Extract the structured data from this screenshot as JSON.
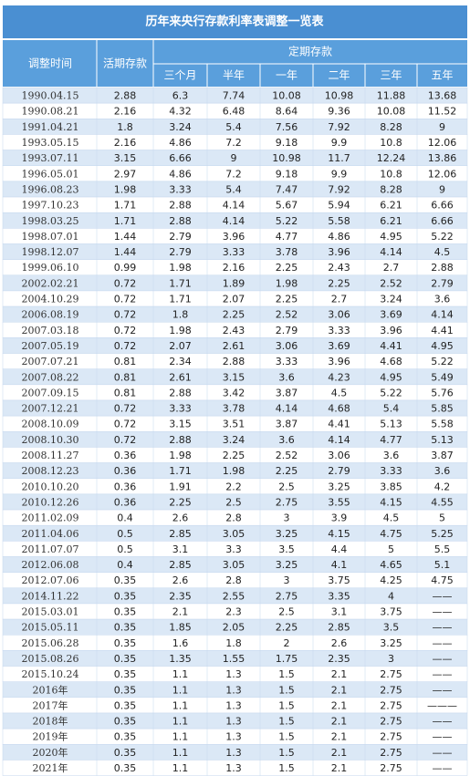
{
  "title": "历年来央行存款利率表调整一览表",
  "header": {
    "date": "调整时间",
    "demand": "活期存款",
    "fixed": "定期存款",
    "terms": [
      "三个月",
      "半年",
      "一年",
      "二年",
      "三年",
      "五年"
    ]
  },
  "rows": [
    [
      "1990.04.15",
      "2.88",
      "6.3",
      "7.74",
      "10.08",
      "10.98",
      "11.88",
      "13.68"
    ],
    [
      "1990.08.21",
      "2.16",
      "4.32",
      "6.48",
      "8.64",
      "9.36",
      "10.08",
      "11.52"
    ],
    [
      "1991.04.21",
      "1.8",
      "3.24",
      "5.4",
      "7.56",
      "7.92",
      "8.28",
      "9"
    ],
    [
      "1993.05.15",
      "2.16",
      "4.86",
      "7.2",
      "9.18",
      "9.9",
      "10.8",
      "12.06"
    ],
    [
      "1993.07.11",
      "3.15",
      "6.66",
      "9",
      "10.98",
      "11.7",
      "12.24",
      "13.86"
    ],
    [
      "1996.05.01",
      "2.97",
      "4.86",
      "7.2",
      "9.18",
      "9.9",
      "10.8",
      "12.06"
    ],
    [
      "1996.08.23",
      "1.98",
      "3.33",
      "5.4",
      "7.47",
      "7.92",
      "8.28",
      "9"
    ],
    [
      "1997.10.23",
      "1.71",
      "2.88",
      "4.14",
      "5.67",
      "5.94",
      "6.21",
      "6.66"
    ],
    [
      "1998.03.25",
      "1.71",
      "2.88",
      "4.14",
      "5.22",
      "5.58",
      "6.21",
      "6.66"
    ],
    [
      "1998.07.01",
      "1.44",
      "2.79",
      "3.96",
      "4.77",
      "4.86",
      "4.95",
      "5.22"
    ],
    [
      "1998.12.07",
      "1.44",
      "2.79",
      "3.33",
      "3.78",
      "3.96",
      "4.14",
      "4.5"
    ],
    [
      "1999.06.10",
      "0.99",
      "1.98",
      "2.16",
      "2.25",
      "2.43",
      "2.7",
      "2.88"
    ],
    [
      "2002.02.21",
      "0.72",
      "1.71",
      "1.89",
      "1.98",
      "2.25",
      "2.52",
      "2.79"
    ],
    [
      "2004.10.29",
      "0.72",
      "1.71",
      "2.07",
      "2.25",
      "2.7",
      "3.24",
      "3.6"
    ],
    [
      "2006.08.19",
      "0.72",
      "1.8",
      "2.25",
      "2.52",
      "3.06",
      "3.69",
      "4.14"
    ],
    [
      "2007.03.18",
      "0.72",
      "1.98",
      "2.43",
      "2.79",
      "3.33",
      "3.96",
      "4.41"
    ],
    [
      "2007.05.19",
      "0.72",
      "2.07",
      "2.61",
      "3.06",
      "3.69",
      "4.41",
      "4.95"
    ],
    [
      "2007.07.21",
      "0.81",
      "2.34",
      "2.88",
      "3.33",
      "3.96",
      "4.68",
      "5.22"
    ],
    [
      "2007.08.22",
      "0.81",
      "2.61",
      "3.15",
      "3.6",
      "4.23",
      "4.95",
      "5.49"
    ],
    [
      "2007.09.15",
      "0.81",
      "2.88",
      "3.42",
      "3.87",
      "4.5",
      "5.22",
      "5.76"
    ],
    [
      "2007.12.21",
      "0.72",
      "3.33",
      "3.78",
      "4.14",
      "4.68",
      "5.4",
      "5.85"
    ],
    [
      "2008.10.09",
      "0.72",
      "3.15",
      "3.51",
      "3.87",
      "4.41",
      "5.13",
      "5.58"
    ],
    [
      "2008.10.30",
      "0.72",
      "2.88",
      "3.24",
      "3.6",
      "4.14",
      "4.77",
      "5.13"
    ],
    [
      "2008.11.27",
      "0.36",
      "1.98",
      "2.25",
      "2.52",
      "3.06",
      "3.6",
      "3.87"
    ],
    [
      "2008.12.23",
      "0.36",
      "1.71",
      "1.98",
      "2.25",
      "2.79",
      "3.33",
      "3.6"
    ],
    [
      "2010.10.20",
      "0.36",
      "1.91",
      "2.2",
      "2.5",
      "3.25",
      "3.85",
      "4.2"
    ],
    [
      "2010.12.26",
      "0.36",
      "2.25",
      "2.5",
      "2.75",
      "3.55",
      "4.15",
      "4.55"
    ],
    [
      "2011.02.09",
      "0.4",
      "2.6",
      "2.8",
      "3",
      "3.9",
      "4.5",
      "5"
    ],
    [
      "2011.04.06",
      "0.5",
      "2.85",
      "3.05",
      "3.25",
      "4.15",
      "4.75",
      "5.25"
    ],
    [
      "2011.07.07",
      "0.5",
      "3.1",
      "3.3",
      "3.5",
      "4.4",
      "5",
      "5.5"
    ],
    [
      "2012.06.08",
      "0.4",
      "2.85",
      "3.05",
      "3.25",
      "4.1",
      "4.65",
      "5.1"
    ],
    [
      "2012.07.06",
      "0.35",
      "2.6",
      "2.8",
      "3",
      "3.75",
      "4.25",
      "4.75"
    ],
    [
      "2014.11.22",
      "0.35",
      "2.35",
      "2.55",
      "2.75",
      "3.35",
      "4",
      "——"
    ],
    [
      "2015.03.01",
      "0.35",
      "2.1",
      "2.3",
      "2.5",
      "3.1",
      "3.75",
      "——"
    ],
    [
      "2015.05.11",
      "0.35",
      "1.85",
      "2.05",
      "2.25",
      "2.85",
      "3.5",
      "——"
    ],
    [
      "2015.06.28",
      "0.35",
      "1.6",
      "1.8",
      "2",
      "2.6",
      "3.25",
      "——"
    ],
    [
      "2015.08.26",
      "0.35",
      "1.35",
      "1.55",
      "1.75",
      "2.35",
      "3",
      "——"
    ],
    [
      "2015.10.24",
      "0.35",
      "1.1",
      "1.3",
      "1.5",
      "2.1",
      "2.75",
      "——"
    ],
    [
      "2016年",
      "0.35",
      "1.1",
      "1.3",
      "1.5",
      "2.1",
      "2.75",
      "——"
    ],
    [
      "2017年",
      "0.35",
      "1.1",
      "1.3",
      "1.5",
      "2.1",
      "2.75",
      "———"
    ],
    [
      "2018年",
      "0.35",
      "1.1",
      "1.3",
      "1.5",
      "2.1",
      "2.75",
      "——"
    ],
    [
      "2019年",
      "0.35",
      "1.1",
      "1.3",
      "1.5",
      "2.1",
      "2.75",
      "——"
    ],
    [
      "2020年",
      "0.35",
      "1.1",
      "1.3",
      "1.5",
      "2.1",
      "2.75",
      "——"
    ],
    [
      "2021年",
      "0.35",
      "1.1",
      "1.3",
      "1.5",
      "2.1",
      "2.75",
      "——"
    ]
  ]
}
